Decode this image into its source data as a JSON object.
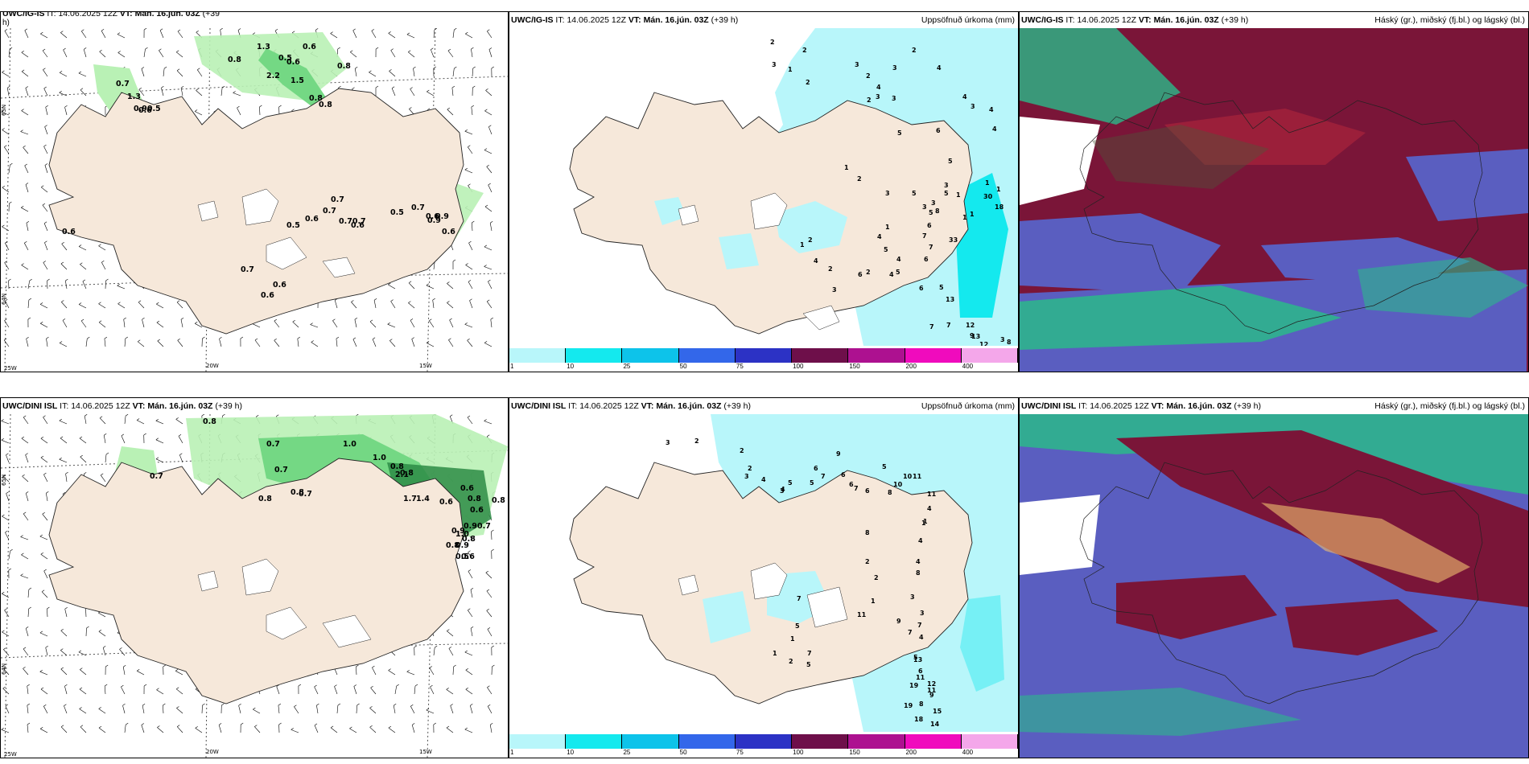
{
  "panels": {
    "tl": {
      "model": "UWC/IG-IS",
      "it_label": "IT:",
      "it": "14.06.2025 12Z",
      "vt_label": "VT:",
      "vt": "Mán. 16.jún. 03Z",
      "lead": "(+39",
      "lead2": "h)",
      "right": ""
    },
    "tm": {
      "model": "UWC/IG-IS",
      "it_label": "IT:",
      "it": "14.06.2025 12Z",
      "vt_label": "VT:",
      "vt": "Mán. 16.jún. 03Z",
      "lead": "(+39 h)",
      "right": "Uppsöfnuð úrkoma (mm)"
    },
    "tr": {
      "model": "UWC/IG-IS",
      "it_label": "IT:",
      "it": "14.06.2025 12Z",
      "vt_label": "VT:",
      "vt": "Mán. 16.jún. 03Z",
      "lead": "(+39 h)",
      "right": "Háský (gr.), miðský (fj.bl.) og lágský (bl.)"
    },
    "bl": {
      "model": "UWC/DINI ISL",
      "it_label": "IT:",
      "it": "14.06.2025 12Z",
      "vt_label": "VT:",
      "vt": "Mán. 16.jún. 03Z",
      "lead": "(+39 h)",
      "right": ""
    },
    "bm": {
      "model": "UWC/DINI ISL",
      "it_label": "IT:",
      "it": "14.06.2025 12Z",
      "vt_label": "VT:",
      "vt": "Mán. 16.jún. 03Z",
      "lead": "(+39 h)",
      "right": "Uppsöfnuð úrkoma (mm)"
    },
    "br": {
      "model": "UWC/DINI ISL",
      "it_label": "IT:",
      "it": "14.06.2025 12Z",
      "vt_label": "VT:",
      "vt": "Mán. 16.jún. 03Z",
      "lead": "(+39 h)",
      "right": "Háský (gr.), miðský (fj.bl.) og lágský (bl.)"
    }
  },
  "axes": {
    "lat1": "65N",
    "lat2": "64N",
    "lon1": "20W",
    "lon2": "15W",
    "lon3": "25W"
  },
  "colorbar": {
    "ticks": [
      "1",
      "10",
      "25",
      "50",
      "75",
      "100",
      "150",
      "200",
      "400"
    ],
    "colors": [
      "#b8f6fa",
      "#14e9ee",
      "#0dc3ea",
      "#3367ea",
      "#2c32c5",
      "#6e0f4a",
      "#ad1190",
      "#f00bbd",
      "#f4a7ea"
    ]
  },
  "colors": {
    "land": "#f6e8da",
    "light_green": "#b9f1b5",
    "mid_green": "#74d884",
    "dark_green": "#2d8c45",
    "precip_light": "#b8f6fa",
    "cloud_high": "#7a1538",
    "cloud_mid": "#5a5ec0",
    "cloud_low": "#2bb98a"
  },
  "wind_labels": {
    "tl": [
      "0.8",
      "1.3",
      "0.6",
      "0.5",
      "0.8",
      "0.6",
      "2.2",
      "1.5",
      "0.8",
      "0.8",
      "0.7",
      "1.3",
      "0.90.5",
      "0.6",
      "0.7",
      "0.7",
      "0.5",
      "0.6",
      "0.70.7",
      "0.6",
      "0.5",
      "0.7",
      "0.6",
      "0.9",
      "0.9",
      "0.6",
      "0.6",
      "0.7",
      "0.6",
      "0.6"
    ],
    "bl": [
      "0.8",
      "0.7",
      "0.7",
      "0.7",
      "1.0",
      "1.0",
      "0.8",
      "0.8",
      "0.8",
      "0.8",
      "0.7",
      "2.1",
      "1.7",
      "1.4",
      "0.6",
      "0.6",
      "0.8",
      "0.6",
      "0.8",
      "0.7",
      "0.9",
      "0.9",
      "0.8",
      "1.0",
      "0.9",
      "0.8",
      "0.5",
      "0.6"
    ]
  },
  "precip_labels": {
    "tm": [
      "2",
      "2",
      "3",
      "1",
      "2",
      "3",
      "2",
      "4",
      "3",
      "2",
      "3",
      "2",
      "4",
      "4",
      "3",
      "4",
      "4",
      "3",
      "5",
      "6",
      "5",
      "1",
      "2",
      "3",
      "1",
      "5",
      "3",
      "5",
      "3",
      "3",
      "5",
      "6",
      "7",
      "8",
      "1",
      "7",
      "6",
      "4",
      "5",
      "4",
      "5",
      "1",
      "2",
      "4",
      "2",
      "3",
      "6",
      "2",
      "4",
      "6",
      "5",
      "1",
      "1",
      "1",
      "30",
      "33",
      "13",
      "7",
      "7",
      "12",
      "13",
      "12",
      "9",
      "8",
      "3",
      "1",
      "18"
    ],
    "bm": [
      "3",
      "2",
      "2",
      "2",
      "3",
      "4",
      "4",
      "3",
      "5",
      "6",
      "5",
      "7",
      "9",
      "6",
      "6",
      "7",
      "6",
      "5",
      "8",
      "10",
      "10",
      "11",
      "11",
      "4",
      "1",
      "1",
      "4",
      "4",
      "8",
      "3",
      "3",
      "7",
      "4",
      "5",
      "6",
      "11",
      "8",
      "12",
      "9",
      "15",
      "14",
      "19",
      "19",
      "18",
      "11",
      "13",
      "7",
      "9",
      "8",
      "2",
      "2",
      "1",
      "11",
      "7",
      "5",
      "1",
      "1",
      "2",
      "7",
      "5"
    ]
  }
}
